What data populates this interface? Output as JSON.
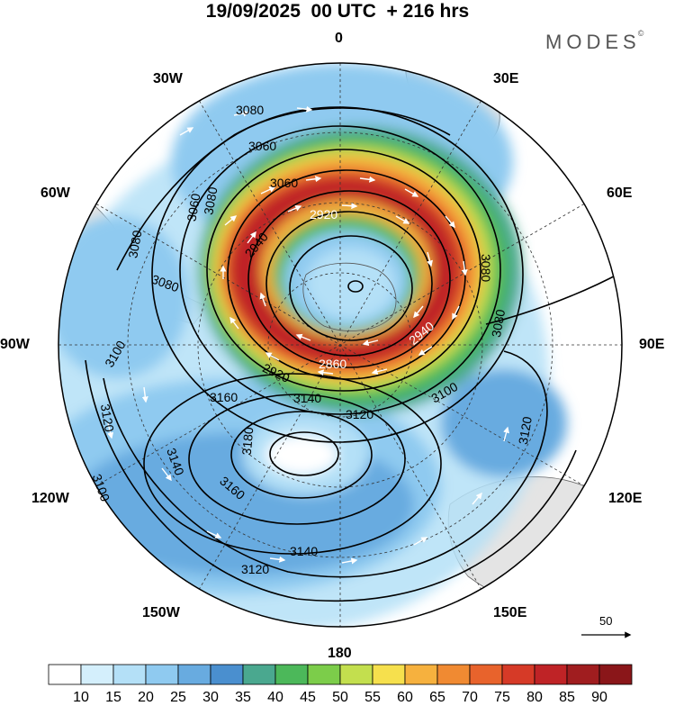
{
  "title": "19/09/2025  00 UTC  + 216 hrs",
  "brand": "MODES",
  "brand_mark": "©",
  "longitude_labels": {
    "lon_0": "0",
    "lon_30e": "30E",
    "lon_60e": "60E",
    "lon_90e": "90E",
    "lon_120e": "120E",
    "lon_150e": "150E",
    "lon_180": "180",
    "lon_150w": "150W",
    "lon_120w": "120W",
    "lon_90w": "90W",
    "lon_60w": "60W",
    "lon_30w": "30W"
  },
  "contour_labels": [
    "3080",
    "3060",
    "3060",
    "3060",
    "2920",
    "2940",
    "3080",
    "3080",
    "3100",
    "3160",
    "3140",
    "3120",
    "3180",
    "3120",
    "3140",
    "3160",
    "3140",
    "3120",
    "3100",
    "3120",
    "3100",
    "3080",
    "3080",
    "2940",
    "2860",
    "2920",
    "3080"
  ],
  "reference_vector": {
    "label": "50"
  },
  "colorbar": {
    "labels": [
      "10",
      "15",
      "20",
      "25",
      "30",
      "35",
      "40",
      "45",
      "50",
      "55",
      "60",
      "65",
      "70",
      "75",
      "80",
      "85",
      "90"
    ],
    "colors": [
      "#ffffff",
      "#d4effc",
      "#b4e0f7",
      "#8fcaf0",
      "#68abe0",
      "#4a8fcf",
      "#4aa88f",
      "#4cb85a",
      "#7ccd4a",
      "#c3df4e",
      "#f6e04d",
      "#f6b13e",
      "#f08a32",
      "#e8632c",
      "#d63a27",
      "#bf2326",
      "#a01d1f",
      "#8a1619"
    ]
  }
}
